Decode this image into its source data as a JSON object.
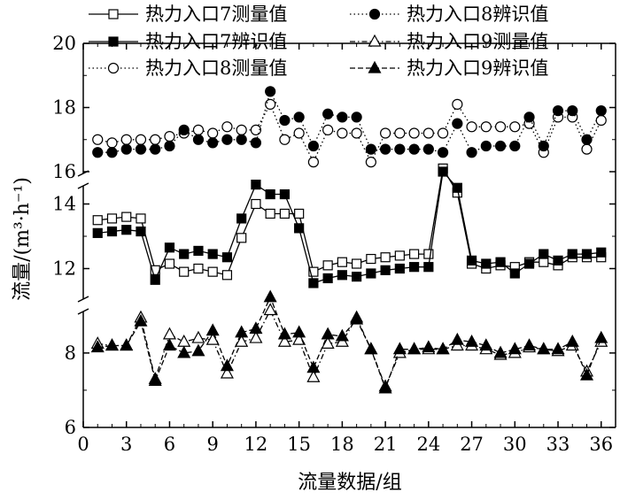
{
  "chart_data": {
    "type": "line",
    "xlabel": "流量数据/组",
    "ylabel": "流量/(m³·h⁻¹)",
    "x_ticks": [
      0,
      3,
      6,
      9,
      12,
      15,
      18,
      21,
      24,
      27,
      30,
      33,
      36
    ],
    "xlim": [
      0,
      37
    ],
    "panels": [
      {
        "ylim": [
          16,
          20
        ],
        "y_ticks": [
          16,
          18,
          20
        ],
        "series": [
          {
            "name": "热力入口8测量值",
            "line": "dotted",
            "marker": "circle-open",
            "x": [
              1,
              2,
              3,
              4,
              5,
              6,
              7,
              8,
              9,
              10,
              11,
              12,
              13,
              14,
              15,
              16,
              17,
              18,
              19,
              20,
              21,
              22,
              23,
              24,
              25,
              26,
              27,
              28,
              29,
              30,
              31,
              32,
              33,
              34,
              35,
              36
            ],
            "values": [
              17.0,
              16.9,
              17.0,
              17.0,
              17.0,
              17.1,
              17.2,
              17.3,
              17.2,
              17.4,
              17.3,
              17.3,
              18.1,
              17.0,
              17.2,
              16.3,
              17.3,
              17.2,
              17.2,
              16.3,
              17.2,
              17.2,
              17.2,
              17.2,
              17.2,
              18.1,
              17.4,
              17.4,
              17.4,
              17.4,
              17.5,
              16.6,
              17.7,
              17.7,
              16.7,
              17.6
            ]
          },
          {
            "name": "热力入口8辨识值",
            "line": "dotted",
            "marker": "circle-filled",
            "x": [
              1,
              2,
              3,
              4,
              5,
              6,
              7,
              8,
              9,
              10,
              11,
              12,
              13,
              14,
              15,
              16,
              17,
              18,
              19,
              20,
              21,
              22,
              23,
              24,
              25,
              26,
              27,
              28,
              29,
              30,
              31,
              32,
              33,
              34,
              35,
              36
            ],
            "values": [
              16.6,
              16.6,
              16.7,
              16.7,
              16.7,
              16.8,
              17.3,
              17.0,
              16.9,
              17.0,
              17.0,
              16.9,
              18.5,
              17.6,
              17.7,
              16.8,
              17.8,
              17.7,
              17.7,
              16.7,
              16.7,
              16.7,
              16.7,
              16.7,
              16.6,
              17.5,
              16.6,
              16.8,
              16.8,
              16.8,
              17.7,
              16.8,
              17.9,
              17.9,
              17.0,
              17.9
            ]
          }
        ]
      },
      {
        "ylim": [
          11,
          15
        ],
        "y_ticks": [
          12,
          14
        ],
        "series": [
          {
            "name": "热力入口7测量值",
            "line": "solid",
            "marker": "square-open",
            "x": [
              1,
              2,
              3,
              4,
              5,
              6,
              7,
              8,
              9,
              10,
              11,
              12,
              13,
              14,
              15,
              16,
              17,
              18,
              19,
              20,
              21,
              22,
              23,
              24,
              25,
              26,
              27,
              28,
              29,
              30,
              31,
              32,
              33,
              34,
              35,
              36
            ],
            "values": [
              13.5,
              13.55,
              13.6,
              13.55,
              11.95,
              12.15,
              11.9,
              12.0,
              11.9,
              11.8,
              12.95,
              14.0,
              13.7,
              13.7,
              13.7,
              11.9,
              12.1,
              12.2,
              12.15,
              12.3,
              12.35,
              12.4,
              12.45,
              12.45,
              15.1,
              14.35,
              12.15,
              12.0,
              12.1,
              12.05,
              12.2,
              12.2,
              12.1,
              12.35,
              12.35,
              12.35
            ]
          },
          {
            "name": "热力入口7辨识值",
            "line": "solid",
            "marker": "square-filled",
            "x": [
              1,
              2,
              3,
              4,
              5,
              6,
              7,
              8,
              9,
              10,
              11,
              12,
              13,
              14,
              15,
              16,
              17,
              18,
              19,
              20,
              21,
              22,
              23,
              24,
              25,
              26,
              27,
              28,
              29,
              30,
              31,
              32,
              33,
              34,
              35,
              36
            ],
            "values": [
              13.1,
              13.15,
              13.2,
              13.15,
              11.65,
              12.65,
              12.45,
              12.55,
              12.45,
              12.35,
              13.55,
              14.6,
              14.3,
              14.3,
              13.25,
              11.55,
              11.7,
              11.8,
              11.75,
              11.85,
              11.95,
              12.0,
              12.05,
              12.05,
              15.0,
              14.5,
              12.25,
              12.15,
              12.2,
              11.85,
              12.15,
              12.45,
              12.25,
              12.45,
              12.45,
              12.5
            ]
          }
        ]
      },
      {
        "ylim": [
          6,
          9.4
        ],
        "y_ticks": [
          6,
          8
        ],
        "series": [
          {
            "name": "热力入口9测量值",
            "line": "dash-dot",
            "marker": "triangle-open",
            "x": [
              1,
              2,
              3,
              4,
              5,
              6,
              7,
              8,
              9,
              10,
              11,
              12,
              13,
              14,
              15,
              16,
              17,
              18,
              19,
              20,
              21,
              22,
              23,
              24,
              25,
              26,
              27,
              28,
              29,
              30,
              31,
              32,
              33,
              34,
              35,
              36
            ],
            "values": [
              8.25,
              8.2,
              8.2,
              8.95,
              7.3,
              8.5,
              8.3,
              8.4,
              8.35,
              7.45,
              8.3,
              8.4,
              9.15,
              8.3,
              8.35,
              7.35,
              8.25,
              8.3,
              8.95,
              8.1,
              7.1,
              8.0,
              8.1,
              8.1,
              8.1,
              8.2,
              8.2,
              8.1,
              7.95,
              8.0,
              8.15,
              8.1,
              8.05,
              8.2,
              7.5,
              8.3
            ]
          },
          {
            "name": "热力入口9辨识值",
            "line": "dash",
            "marker": "triangle-filled",
            "x": [
              1,
              2,
              3,
              4,
              5,
              6,
              7,
              8,
              9,
              10,
              11,
              12,
              13,
              14,
              15,
              16,
              17,
              18,
              19,
              20,
              21,
              22,
              23,
              24,
              25,
              26,
              27,
              28,
              29,
              30,
              31,
              32,
              33,
              34,
              35,
              36
            ],
            "values": [
              8.15,
              8.2,
              8.2,
              8.85,
              7.25,
              8.2,
              8.0,
              8.05,
              8.6,
              7.65,
              8.55,
              8.65,
              9.5,
              8.5,
              8.55,
              7.6,
              8.5,
              8.45,
              8.9,
              8.1,
              7.05,
              8.1,
              8.1,
              8.15,
              8.1,
              8.35,
              8.3,
              8.2,
              8.0,
              8.1,
              8.2,
              8.1,
              8.1,
              8.3,
              7.4,
              8.4
            ]
          }
        ]
      }
    ],
    "legend": {
      "placement": "top",
      "entries": [
        "热力入口7测量值",
        "热力入口7辨识值",
        "热力入口8测量值",
        "热力入口8辨识值",
        "热力入口9测量值",
        "热力入口9辨识值"
      ]
    },
    "grid": false
  }
}
